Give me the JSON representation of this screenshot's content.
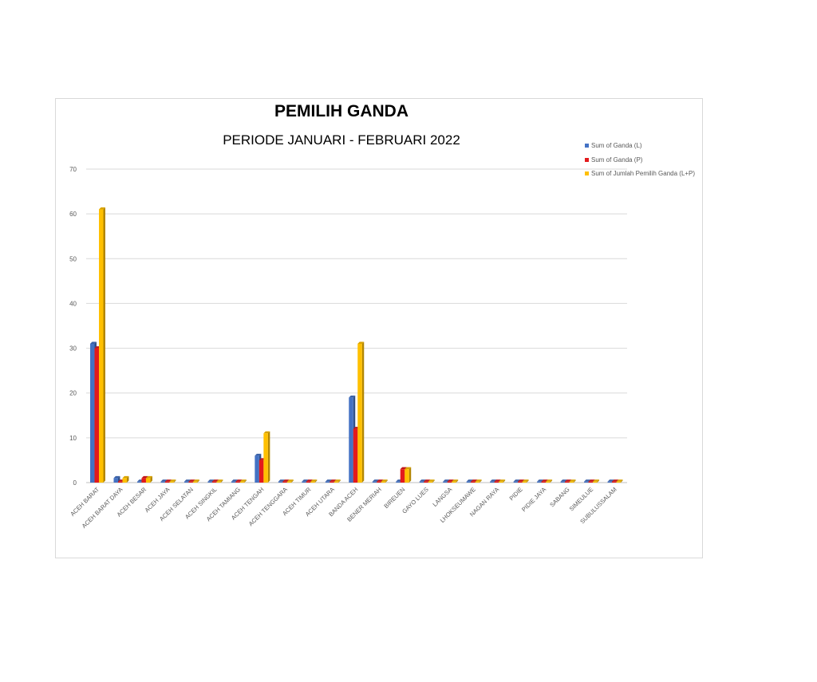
{
  "chart_data": {
    "type": "bar",
    "title": "PEMILIH GANDA",
    "subtitle": "PERIODE JANUARI - FEBRUARI 2022",
    "xlabel": "",
    "ylabel": "",
    "ylim": [
      0,
      70
    ],
    "yticks": [
      0,
      10,
      20,
      30,
      40,
      50,
      60,
      70
    ],
    "grid": true,
    "legend_position": "top-right",
    "categories": [
      "ACEH BARAT",
      "ACEH BARAT DAYA",
      "ACEH BESAR",
      "ACEH JAYA",
      "ACEH SELATAN",
      "ACEH SINGKIL",
      "ACEH TAMIANG",
      "ACEH TENGAH",
      "ACEH TENGGARA",
      "ACEH TIMUR",
      "ACEH UTARA",
      "BANDA ACEH",
      "BENER MERIAH",
      "BIREUEN",
      "GAYO LUES",
      "LANGSA",
      "LHOKSEUMAWE",
      "NAGAN RAYA",
      "PIDIE",
      "PIDIE JAYA",
      "SABANG",
      "SIMEULUE",
      "SUBULUSSALAM"
    ],
    "series": [
      {
        "name": "Sum of Ganda (L)",
        "color": "#4472c4",
        "values": [
          31,
          1,
          0,
          0,
          0,
          0,
          0,
          6,
          0,
          0,
          0,
          19,
          0,
          0,
          0,
          0,
          0,
          0,
          0,
          0,
          0,
          0,
          0
        ]
      },
      {
        "name": "Sum of Ganda (P)",
        "color": "#e31a1c",
        "values": [
          30,
          0,
          1,
          0,
          0,
          0,
          0,
          5,
          0,
          0,
          0,
          12,
          0,
          3,
          0,
          0,
          0,
          0,
          0,
          0,
          0,
          0,
          0
        ]
      },
      {
        "name": "Sum of Jumlah Pemilih Ganda (L+P)",
        "color": "#ffc000",
        "values": [
          61,
          1,
          1,
          0,
          0,
          0,
          0,
          11,
          0,
          0,
          0,
          31,
          0,
          3,
          0,
          0,
          0,
          0,
          0,
          0,
          0,
          0,
          0
        ]
      }
    ]
  }
}
